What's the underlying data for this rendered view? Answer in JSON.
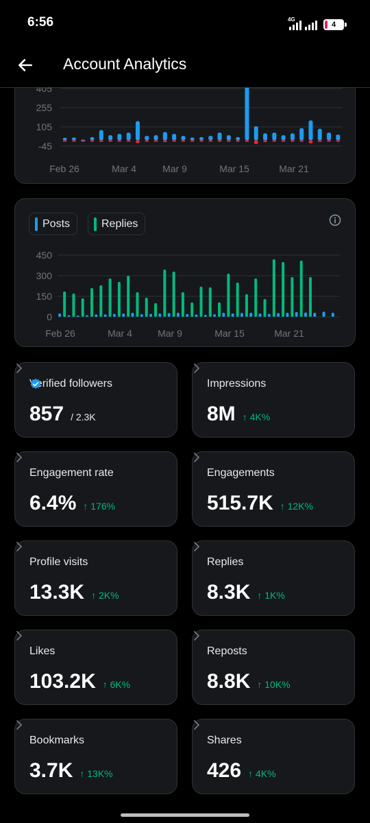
{
  "status": {
    "time": "6:56",
    "network": "4G",
    "battery": "4"
  },
  "header": {
    "title": "Account Analytics"
  },
  "chart_data": [
    {
      "type": "bar",
      "x_tick_labels": [
        "Feb 26",
        "Mar 4",
        "Mar 9",
        "Mar 15",
        "Mar 21"
      ],
      "y_tick_labels": [
        "-45",
        "105",
        "255",
        "405"
      ],
      "ylim": [
        -45,
        405
      ],
      "grid": true,
      "series": [
        {
          "color": "#1d9bf0",
          "values": [
            20,
            22,
            5,
            25,
            80,
            40,
            50,
            60,
            150,
            35,
            40,
            65,
            50,
            35,
            22,
            25,
            35,
            60,
            40,
            25,
            420,
            110,
            55,
            60,
            40,
            55,
            95,
            155,
            90,
            60,
            45
          ]
        },
        {
          "color": "#f4212e",
          "values": [
            -5,
            -5,
            -5,
            -5,
            -12,
            -10,
            -8,
            -6,
            -22,
            -8,
            -8,
            -14,
            -6,
            -6,
            -5,
            -5,
            -5,
            -8,
            -6,
            -5,
            -12,
            -30,
            -14,
            -8,
            -8,
            -6,
            -10,
            -24,
            -12,
            -8,
            -6
          ]
        }
      ]
    },
    {
      "type": "bar",
      "x_tick_labels": [
        "Feb 26",
        "Mar 4",
        "Mar 9",
        "Mar 15",
        "Mar 21"
      ],
      "y_tick_labels": [
        "0",
        "150",
        "300",
        "450"
      ],
      "ylim": [
        0,
        450
      ],
      "grid": true,
      "legend": "top-left",
      "series": [
        {
          "name": "Posts",
          "color": "#1d9bf0",
          "values": [
            25,
            12,
            10,
            12,
            18,
            18,
            22,
            25,
            30,
            20,
            22,
            25,
            28,
            30,
            22,
            18,
            15,
            20,
            30,
            25,
            28,
            30,
            25,
            22,
            28,
            30,
            35,
            32,
            30,
            38,
            30
          ]
        },
        {
          "name": "Replies",
          "color": "#00ba7c",
          "values": [
            185,
            170,
            135,
            210,
            230,
            280,
            255,
            300,
            180,
            140,
            100,
            345,
            330,
            180,
            105,
            220,
            215,
            105,
            315,
            250,
            165,
            280,
            130,
            420,
            400,
            290,
            410,
            290,
            0,
            0,
            0
          ]
        }
      ]
    }
  ],
  "legend": {
    "posts": "Posts",
    "replies": "Replies"
  },
  "metrics": [
    {
      "label": "Verified followers",
      "value": "857",
      "sub": "/ 2.3K",
      "delta": ""
    },
    {
      "label": "Impressions",
      "value": "8M",
      "sub": "",
      "delta": "↑ 4K%"
    },
    {
      "label": "Engagement rate",
      "value": "6.4%",
      "sub": "",
      "delta": "↑ 176%"
    },
    {
      "label": "Engagements",
      "value": "515.7K",
      "sub": "",
      "delta": "↑ 12K%"
    },
    {
      "label": "Profile visits",
      "value": "13.3K",
      "sub": "",
      "delta": "↑ 2K%"
    },
    {
      "label": "Replies",
      "value": "8.3K",
      "sub": "",
      "delta": "↑ 1K%"
    },
    {
      "label": "Likes",
      "value": "103.2K",
      "sub": "",
      "delta": "↑ 6K%"
    },
    {
      "label": "Reposts",
      "value": "8.8K",
      "sub": "",
      "delta": "↑ 10K%"
    },
    {
      "label": "Bookmarks",
      "value": "3.7K",
      "sub": "",
      "delta": "↑ 13K%"
    },
    {
      "label": "Shares",
      "value": "426",
      "sub": "",
      "delta": "↑ 4K%"
    }
  ],
  "colors": {
    "posts": "#1d9bf0",
    "replies": "#00ba7c",
    "negative": "#f4212e",
    "delta": "#00ba7c",
    "verified": "#1d9bf0"
  }
}
